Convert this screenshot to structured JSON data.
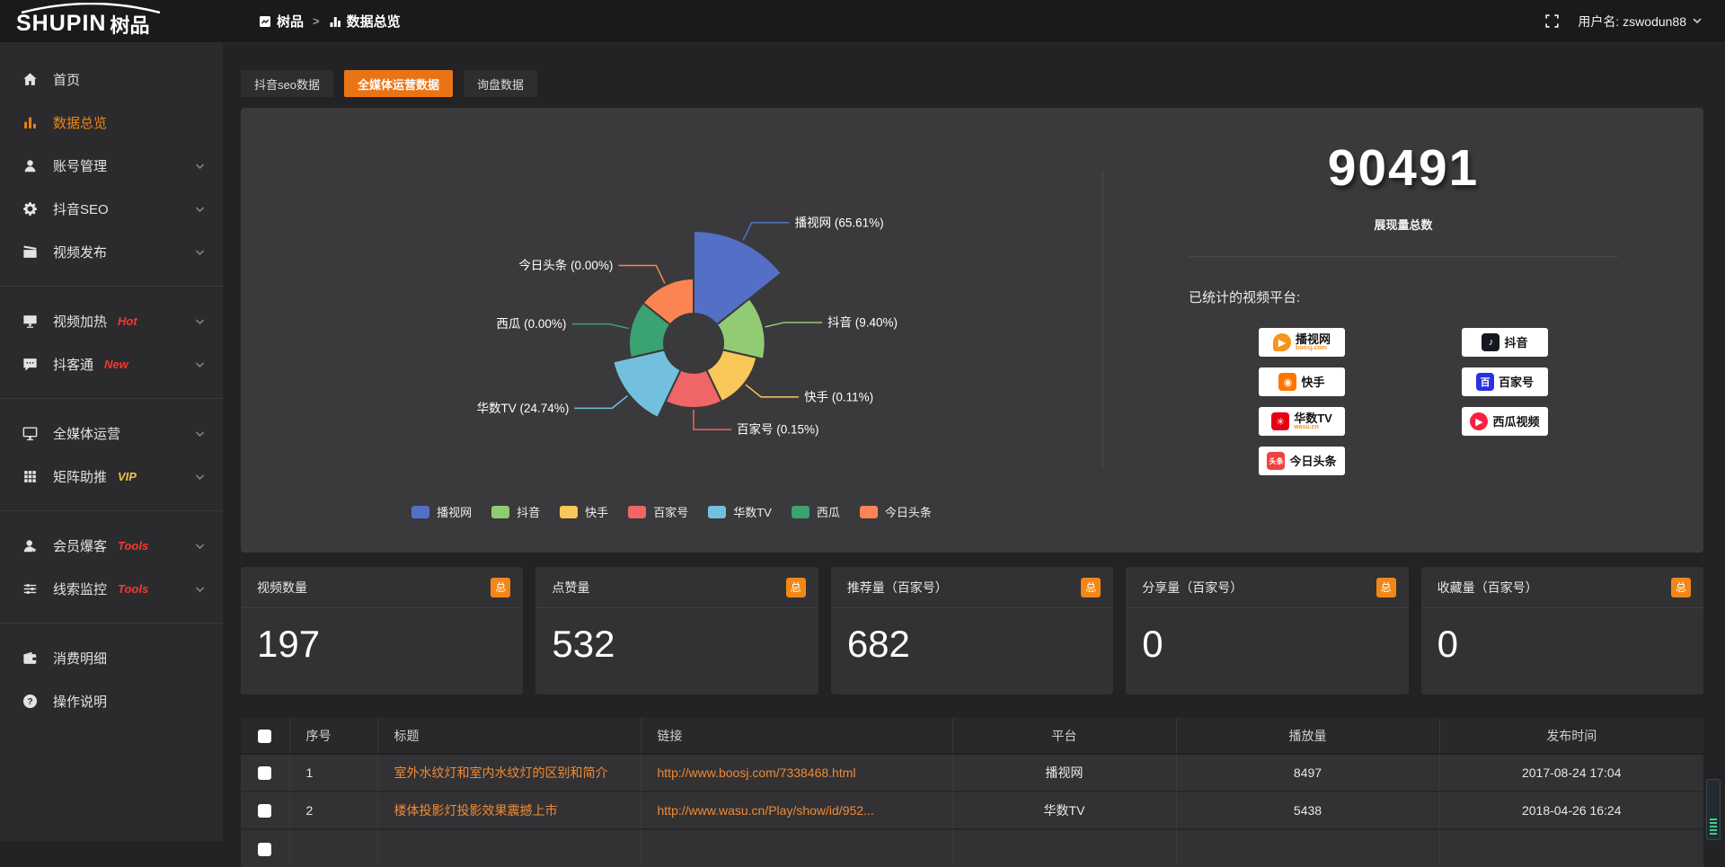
{
  "topbar": {
    "logo_text": "SHUPIN",
    "logo_suffix": "树品",
    "breadcrumb": [
      {
        "label": "树品"
      },
      {
        "label": "数据总览"
      }
    ],
    "breadcrumb_sep": ">",
    "username": "用户名: zswodun88"
  },
  "sidebar": {
    "items": [
      {
        "label": "首页",
        "icon": "home"
      },
      {
        "label": "数据总览",
        "icon": "chart",
        "active": true
      },
      {
        "label": "账号管理",
        "icon": "user",
        "chevron": true
      },
      {
        "label": "抖音SEO",
        "icon": "gear",
        "chevron": true
      },
      {
        "label": "视频发布",
        "icon": "clapper",
        "chevron": true
      },
      {
        "divider": true
      },
      {
        "label": "视频加热",
        "icon": "heat",
        "badge": "Hot",
        "badge_color": "#f5382e",
        "chevron": true
      },
      {
        "label": "抖客通",
        "icon": "chat",
        "badge": "New",
        "badge_color": "#f5382e",
        "chevron": true
      },
      {
        "divider": true
      },
      {
        "label": "全媒体运营",
        "icon": "monitor",
        "chevron": true
      },
      {
        "label": "矩阵助推",
        "icon": "grid",
        "badge": "VIP",
        "badge_color": "#f0c243",
        "chevron": true
      },
      {
        "divider": true
      },
      {
        "label": "会员爆客",
        "icon": "member",
        "badge": "Tools",
        "badge_color": "#f5382e",
        "chevron": true
      },
      {
        "label": "线索监控",
        "icon": "sliders",
        "badge": "Tools",
        "badge_color": "#f5382e",
        "chevron": true
      },
      {
        "divider": true
      },
      {
        "label": "消费明细",
        "icon": "wallet"
      },
      {
        "label": "操作说明",
        "icon": "help"
      }
    ]
  },
  "tabs": [
    {
      "label": "抖音seo数据",
      "active": false
    },
    {
      "label": "全媒体运营数据",
      "active": true
    },
    {
      "label": "询盘数据",
      "active": false
    }
  ],
  "chart_data": {
    "type": "pie",
    "variant": "nightingale-rose",
    "categories": [
      "播视网",
      "抖音",
      "快手",
      "百家号",
      "华数TV",
      "西瓜",
      "今日头条"
    ],
    "values_percent": [
      65.61,
      9.4,
      0.11,
      0.15,
      24.74,
      0.0,
      0.0
    ],
    "colors": [
      "#5470c6",
      "#91cc75",
      "#fac858",
      "#ee6666",
      "#73c0de",
      "#3ba272",
      "#fc8452"
    ],
    "label_format": "{name} ({value}%)",
    "legend_position": "bottom"
  },
  "summary": {
    "total_value": "90491",
    "total_label": "展现量总数",
    "platforms_title": "已统计的视频平台:",
    "platforms": [
      {
        "name": "播视网",
        "sub": "boosj.com",
        "glyph": "▶",
        "glyph_bg": "#f7941d",
        "shape": "blob"
      },
      {
        "name": "抖音",
        "glyph": "♪",
        "glyph_bg": "#16181f",
        "shape": "square"
      },
      {
        "name": "快手",
        "glyph": "◉",
        "glyph_bg": "#ff7500",
        "shape": "square"
      },
      {
        "name": "百家号",
        "glyph": "百",
        "glyph_bg": "#2932e1",
        "shape": "square"
      },
      {
        "name": "华数TV",
        "sub": "wasu.cn",
        "glyph": "✳",
        "glyph_bg": "#e60012",
        "shape": "square"
      },
      {
        "name": "西瓜视频",
        "glyph": "▶",
        "glyph_bg": "#fa1f41",
        "shape": "circle"
      },
      {
        "name": "今日头条",
        "glyph": "头条",
        "glyph_bg": "#f04142",
        "shape": "square"
      }
    ]
  },
  "stat_cards": [
    {
      "title": "视频数量",
      "badge": "总",
      "value": "197"
    },
    {
      "title": "点赞量",
      "badge": "总",
      "value": "532"
    },
    {
      "title": "推荐量（百家号）",
      "badge": "总",
      "value": "682"
    },
    {
      "title": "分享量（百家号）",
      "badge": "总",
      "value": "0"
    },
    {
      "title": "收藏量（百家号）",
      "badge": "总",
      "value": "0"
    }
  ],
  "table": {
    "headers": [
      "序号",
      "标题",
      "链接",
      "平台",
      "播放量",
      "发布时间"
    ],
    "rows": [
      {
        "num": "1",
        "title": "室外水纹灯和室内水纹灯的区别和简介",
        "link": "http://www.boosj.com/7338468.html",
        "platform": "播视网",
        "plays": "8497",
        "time": "2017-08-24 17:04"
      },
      {
        "num": "2",
        "title": "楼体投影灯投影效果震撼上市",
        "link": "http://www.wasu.cn/Play/show/id/952...",
        "platform": "华数TV",
        "plays": "5438",
        "time": "2018-04-26 16:24"
      }
    ]
  },
  "colors": {
    "accent": "#ea7415",
    "link": "#f08a35",
    "panel_bg": "#3a3a3c"
  }
}
